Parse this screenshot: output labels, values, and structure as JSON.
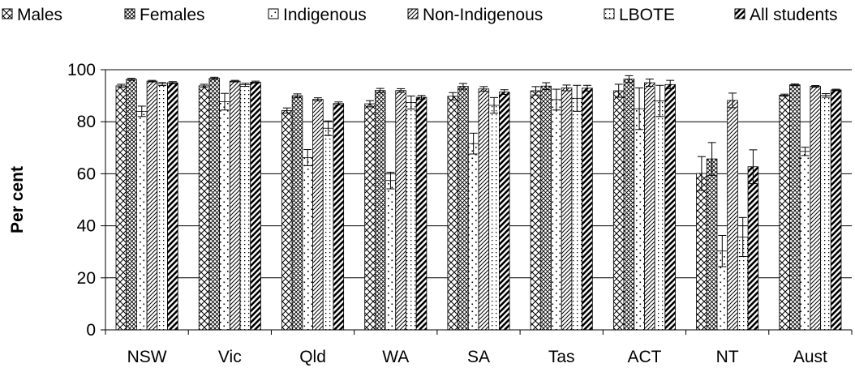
{
  "chart_data": {
    "type": "bar",
    "title": "",
    "xlabel": "",
    "ylabel": "Per cent",
    "ylim": [
      0,
      100
    ],
    "yticks": [
      "0",
      "20",
      "40",
      "60",
      "80",
      "100"
    ],
    "grid": true,
    "legend_position": "top",
    "error_bars": true,
    "categories": [
      "NSW",
      "Vic",
      "Qld",
      "WA",
      "SA",
      "Tas",
      "ACT",
      "NT",
      "Aust"
    ],
    "series": [
      {
        "name": "Males",
        "pattern": "crosshatch",
        "values": [
          93.8,
          93.8,
          84.3,
          86.9,
          89.8,
          91.9,
          91.9,
          60.1,
          90.2
        ],
        "errors": [
          0.6,
          0.6,
          1.0,
          1.2,
          1.4,
          1.6,
          2.5,
          6.5,
          0.4
        ]
      },
      {
        "name": "Females",
        "pattern": "dense-crosshatch",
        "values": [
          96.3,
          96.7,
          90.0,
          92.0,
          93.6,
          93.7,
          96.4,
          65.7,
          94.2
        ],
        "errors": [
          0.4,
          0.4,
          0.7,
          0.8,
          1.1,
          1.3,
          1.3,
          6.3,
          0.3
        ]
      },
      {
        "name": "Indigenous",
        "pattern": "sparse-dots",
        "values": [
          84.0,
          87.7,
          66.2,
          57.4,
          71.6,
          88.5,
          85.0,
          30.3,
          68.6
        ],
        "errors": [
          2.0,
          3.2,
          3.1,
          3.2,
          4.0,
          4.0,
          8.0,
          6.0,
          1.6
        ]
      },
      {
        "name": "Non-Indigenous",
        "pattern": "diagonal",
        "values": [
          95.6,
          95.6,
          88.6,
          92.0,
          92.6,
          93.0,
          95.0,
          88.2,
          93.6
        ],
        "errors": [
          0.3,
          0.3,
          0.6,
          0.7,
          0.9,
          1.1,
          1.4,
          2.8,
          0.3
        ]
      },
      {
        "name": "LBOTE",
        "pattern": "dots",
        "values": [
          94.5,
          94.2,
          77.5,
          87.4,
          86.3,
          89.0,
          88.0,
          35.7,
          90.1
        ],
        "errors": [
          0.6,
          0.6,
          2.8,
          2.5,
          3.0,
          5.0,
          6.0,
          7.5,
          0.7
        ]
      },
      {
        "name": "All students",
        "pattern": "thick-diagonal",
        "values": [
          95.0,
          95.2,
          87.0,
          89.4,
          91.4,
          92.9,
          94.3,
          62.7,
          92.2
        ],
        "errors": [
          0.4,
          0.4,
          0.6,
          0.7,
          0.9,
          1.1,
          1.6,
          6.5,
          0.3
        ]
      }
    ]
  }
}
